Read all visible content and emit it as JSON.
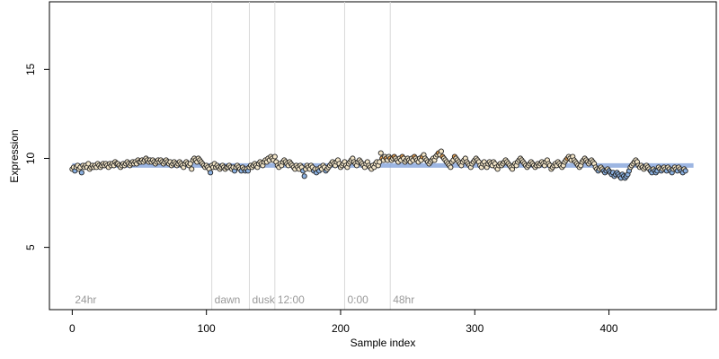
{
  "chart_data": {
    "type": "scatter",
    "xlabel": "Sample index",
    "ylabel": "Expression",
    "xlim": [
      -17,
      480
    ],
    "ylim": [
      1.5,
      18.8
    ],
    "x_ticks": [
      0,
      100,
      200,
      300,
      400
    ],
    "y_ticks": [
      5,
      10,
      15
    ],
    "colors": {
      "dark_point": "#222222",
      "orange_point": "#e8a050",
      "blue_point": "#8ab0e0",
      "cream_point": "#f4e6c8",
      "fit_band": "#7c9ed8",
      "region_line": "#d9d9d9",
      "region_label": "#9a9a9a"
    },
    "regions": [
      {
        "label": "24hr",
        "x": 0
      },
      {
        "label": "dawn",
        "x": 104
      },
      {
        "label": "dusk",
        "x": 132
      },
      {
        "label": "12:00",
        "x": 151
      },
      {
        "label": "0:00",
        "x": 203
      },
      {
        "label": "48hr",
        "x": 237
      }
    ],
    "region_lines": [
      104,
      132,
      151,
      203,
      237
    ],
    "fit_band": {
      "x_start": 0,
      "x_end": 463,
      "y": 9.6
    },
    "series": [
      {
        "values": [
          9.4,
          9.5,
          9.3,
          9.5,
          9.6,
          9.4,
          9.5,
          9.2,
          9.6,
          9.5,
          9.6,
          9.5,
          9.7,
          9.4,
          9.5,
          9.6,
          9.5,
          9.6,
          9.5,
          9.7,
          9.6,
          9.5,
          9.6,
          9.7,
          9.6,
          9.7,
          9.6,
          9.5,
          9.7,
          9.6,
          9.7,
          9.6,
          9.8,
          9.7,
          9.7,
          9.6,
          9.5,
          9.6,
          9.7,
          9.6,
          9.7,
          9.8,
          9.7,
          9.6,
          9.7,
          9.8,
          9.7,
          9.8,
          9.7,
          9.9,
          9.8,
          9.8,
          9.9,
          9.8,
          9.9,
          10.0,
          9.9,
          9.8,
          9.9,
          9.8,
          9.9,
          9.8,
          9.7,
          9.8,
          9.9,
          9.8,
          9.9,
          9.8,
          9.7,
          9.8,
          9.9,
          9.8,
          9.7,
          9.8,
          9.6,
          9.7,
          9.8,
          9.7,
          9.6,
          9.7,
          9.8,
          9.7,
          9.6,
          9.5,
          9.7,
          9.8,
          9.7,
          9.6,
          9.7,
          9.4,
          9.9,
          10.0,
          9.9,
          9.8,
          10.0,
          9.9,
          9.8,
          9.7,
          9.6,
          9.5,
          9.6,
          9.5,
          9.4,
          9.2,
          9.6,
          9.5,
          9.7,
          9.5,
          9.6,
          9.5,
          9.4,
          9.5,
          9.6,
          9.5,
          9.4,
          9.5,
          9.5,
          9.6,
          9.5,
          9.4,
          9.5,
          9.3,
          9.5,
          9.6,
          9.5,
          9.4,
          9.3,
          9.5,
          9.4,
          9.3,
          9.4,
          9.3,
          9.5,
          9.6,
          9.5,
          9.6,
          9.7,
          9.6,
          9.5,
          9.7,
          9.8,
          9.7,
          9.6,
          9.8,
          9.9,
          9.8,
          10.0,
          9.9,
          10.1,
          10.0,
          9.9,
          10.1,
          9.8,
          9.6,
          9.5,
          9.7,
          9.6,
          9.8,
          9.9,
          9.8,
          9.7,
          9.6,
          9.8,
          9.7,
          9.6,
          9.5,
          9.4,
          9.6,
          9.5,
          9.4,
          9.6,
          9.5,
          9.3,
          9.0,
          9.4,
          9.6,
          9.5,
          9.4,
          9.6,
          9.5,
          9.3,
          9.4,
          9.2,
          9.4,
          9.3,
          9.5,
          9.4,
          9.6,
          9.5,
          9.3,
          9.4,
          9.5,
          9.6,
          9.7,
          9.8,
          9.7,
          9.6,
          9.8,
          9.9,
          9.7,
          9.5,
          9.6,
          9.7,
          9.8,
          9.6,
          9.5,
          9.7,
          9.8,
          9.9,
          10.0,
          9.8,
          9.7,
          9.6,
          9.8,
          9.9,
          9.8,
          9.7,
          9.6,
          9.5,
          9.7,
          9.8,
          9.6,
          9.5,
          9.4,
          9.6,
          9.5,
          9.7,
          9.8,
          9.6,
          9.8,
          10.3,
          10.0,
          9.9,
          10.1,
          10.0,
          9.9,
          10.1,
          10.0,
          9.9,
          10.0,
          10.1,
          10.0,
          9.9,
          9.8,
          10.0,
          9.9,
          10.1,
          10.0,
          9.8,
          9.9,
          10.0,
          9.9,
          9.8,
          10.0,
          9.9,
          10.1,
          10.0,
          9.9,
          9.8,
          10.0,
          9.9,
          10.1,
          10.2,
          10.0,
          9.9,
          9.8,
          9.7,
          9.8,
          9.9,
          10.0,
          9.9,
          10.1,
          10.2,
          10.3,
          10.2,
          10.4,
          10.1,
          10.0,
          9.9,
          9.8,
          9.7,
          9.6,
          9.5,
          9.8,
          9.9,
          10.1,
          10.0,
          9.9,
          9.8,
          9.7,
          9.6,
          9.8,
          9.9,
          10.0,
          9.8,
          9.7,
          9.6,
          9.5,
          9.7,
          9.8,
          9.9,
          10.0,
          9.9,
          9.8,
          9.6,
          9.5,
          9.7,
          9.8,
          9.6,
          9.5,
          9.7,
          9.8,
          9.7,
          9.6,
          9.8,
          9.7,
          9.5,
          9.4,
          9.6,
          9.7,
          9.6,
          9.7,
          9.8,
          9.9,
          9.8,
          9.7,
          9.6,
          9.5,
          9.4,
          9.6,
          9.7,
          9.6,
          9.8,
          9.9,
          10.0,
          9.9,
          9.8,
          9.7,
          9.6,
          9.5,
          9.6,
          9.7,
          9.8,
          9.7,
          9.6,
          9.5,
          9.6,
          9.7,
          9.6,
          9.7,
          9.8,
          9.7,
          9.6,
          9.8,
          9.9,
          9.7,
          9.6,
          9.4,
          9.5,
          9.6,
          9.7,
          9.6,
          9.8,
          9.7,
          9.6,
          9.5,
          9.6,
          9.8,
          9.9,
          10.0,
          10.1,
          10.0,
          9.9,
          10.1,
          9.9,
          9.8,
          9.7,
          9.6,
          9.5,
          9.6,
          9.8,
          9.9,
          10.0,
          9.9,
          9.8,
          9.7,
          9.8,
          9.9,
          9.8,
          9.7,
          9.5,
          9.4,
          9.3,
          9.4,
          9.5,
          9.4,
          9.3,
          9.2,
          9.3,
          9.4,
          9.3,
          9.2,
          9.1,
          9.2,
          9.0,
          9.1,
          9.2,
          9.1,
          9.0,
          8.9,
          9.1,
          9.0,
          8.9,
          9.0,
          9.1,
          9.3,
          9.5,
          9.6,
          9.7,
          9.8,
          9.9,
          9.8,
          9.6,
          9.5,
          9.6,
          9.5,
          9.4,
          9.5,
          9.6,
          9.5,
          9.4,
          9.3,
          9.2,
          9.4,
          9.3,
          9.2,
          9.3,
          9.5,
          9.4,
          9.3,
          9.4,
          9.5,
          9.4,
          9.3,
          9.5,
          9.4,
          9.3,
          9.2,
          9.4,
          9.5,
          9.4,
          9.3,
          9.5,
          9.4,
          9.3,
          9.2,
          9.4,
          9.3
        ]
      }
    ]
  }
}
